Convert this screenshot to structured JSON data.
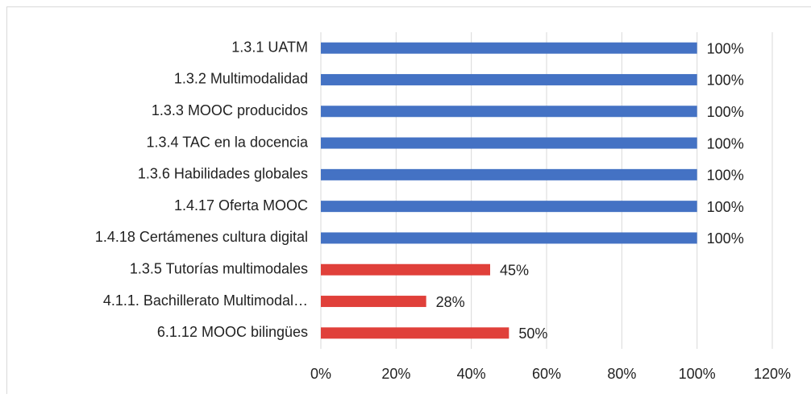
{
  "chart_data": {
    "type": "bar",
    "orientation": "horizontal",
    "categories": [
      "1.3.1 UATM",
      "1.3.2 Multimodalidad",
      "1.3.3 MOOC producidos",
      "1.3.4 TAC en la docencia",
      "1.3.6 Habilidades globales",
      "1.4.17 Oferta MOOC",
      "1.4.18 Certámenes cultura digital",
      "1.3.5 Tutorías multimodales",
      "4.1.1. Bachillerato Multimodal…",
      "6.1.12 MOOC bilingües"
    ],
    "values": [
      100,
      100,
      100,
      100,
      100,
      100,
      100,
      45,
      28,
      50
    ],
    "value_labels": [
      "100%",
      "100%",
      "100%",
      "100%",
      "100%",
      "100%",
      "100%",
      "45%",
      "28%",
      "50%"
    ],
    "colors": [
      "#4472c4",
      "#4472c4",
      "#4472c4",
      "#4472c4",
      "#4472c4",
      "#4472c4",
      "#4472c4",
      "#e0403a",
      "#e0403a",
      "#e0403a"
    ],
    "xlim": [
      0,
      120
    ],
    "xticks": [
      {
        "value": 0,
        "label": "0%"
      },
      {
        "value": 20,
        "label": "20%"
      },
      {
        "value": 40,
        "label": "40%"
      },
      {
        "value": 60,
        "label": "60%"
      },
      {
        "value": 80,
        "label": "80%"
      },
      {
        "value": 100,
        "label": "100%"
      },
      {
        "value": 120,
        "label": "120%"
      }
    ],
    "grid": true
  }
}
